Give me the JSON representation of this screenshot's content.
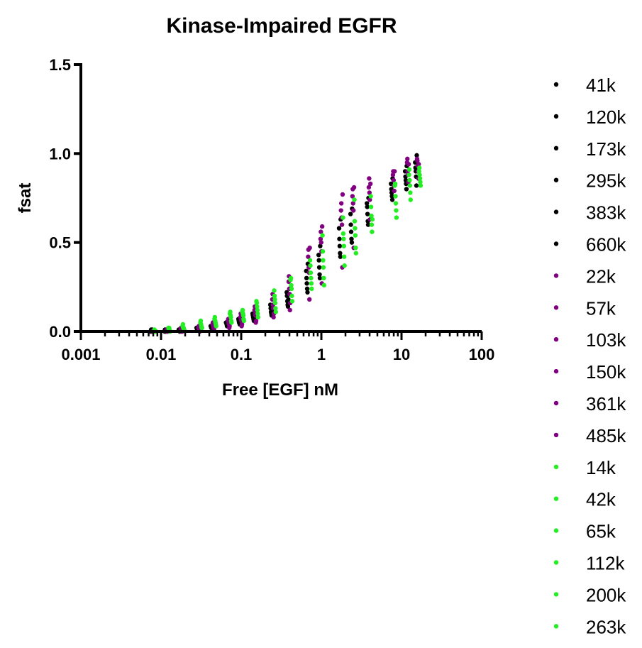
{
  "chart_data": {
    "type": "scatter",
    "title": "Kinase-Impaired EGFR",
    "xlabel": "Free [EGF] nM",
    "ylabel": "fsat",
    "xscale": "log",
    "xlim": [
      0.001,
      100
    ],
    "ylim": [
      0,
      1.5
    ],
    "x_ticks": [
      0.001,
      0.01,
      0.1,
      1,
      10,
      100
    ],
    "x_tick_labels": [
      "0.001",
      "0.01",
      "0.1",
      "1",
      "10",
      "100"
    ],
    "y_ticks": [
      0,
      0.5,
      1.0,
      1.5
    ],
    "y_tick_labels": [
      "0.0",
      "0.5",
      "1.0",
      "1.5"
    ],
    "legend_position": "right",
    "x_levels": [
      0.008,
      0.012,
      0.018,
      0.03,
      0.045,
      0.07,
      0.1,
      0.15,
      0.25,
      0.4,
      0.7,
      1.0,
      1.8,
      2.5,
      4.0,
      8.0,
      12.0,
      16.0
    ],
    "series": [
      {
        "name": "41k",
        "color": "#000000",
        "values": [
          0.0,
          0.0,
          0.01,
          0.02,
          0.03,
          0.05,
          0.07,
          0.1,
          0.15,
          0.22,
          0.34,
          0.43,
          0.58,
          0.66,
          0.72,
          0.83,
          0.9,
          0.95
        ]
      },
      {
        "name": "120k",
        "color": "#000000",
        "values": [
          0.0,
          0.01,
          0.01,
          0.02,
          0.03,
          0.05,
          0.06,
          0.09,
          0.13,
          0.2,
          0.3,
          0.4,
          0.52,
          0.6,
          0.7,
          0.8,
          0.87,
          0.92
        ]
      },
      {
        "name": "173k",
        "color": "#000000",
        "values": [
          0.01,
          0.0,
          0.01,
          0.01,
          0.02,
          0.04,
          0.05,
          0.08,
          0.11,
          0.17,
          0.27,
          0.36,
          0.48,
          0.56,
          0.66,
          0.78,
          0.85,
          0.9
        ]
      },
      {
        "name": "295k",
        "color": "#000000",
        "values": [
          0.0,
          0.0,
          0.0,
          0.01,
          0.02,
          0.03,
          0.05,
          0.07,
          0.1,
          0.15,
          0.24,
          0.32,
          0.44,
          0.52,
          0.62,
          0.76,
          0.83,
          0.87
        ]
      },
      {
        "name": "383k",
        "color": "#000000",
        "values": [
          0.0,
          0.0,
          0.0,
          0.01,
          0.02,
          0.03,
          0.04,
          0.06,
          0.09,
          0.14,
          0.22,
          0.3,
          0.42,
          0.5,
          0.6,
          0.74,
          0.8,
          0.82
        ]
      },
      {
        "name": "660k",
        "color": "#000000",
        "values": [
          0.01,
          0.01,
          0.01,
          0.02,
          0.03,
          0.04,
          0.06,
          0.08,
          0.12,
          0.18,
          0.38,
          0.48,
          0.63,
          0.69,
          0.75,
          0.86,
          0.93,
          0.99
        ]
      },
      {
        "name": "22k",
        "color": "#800080",
        "values": [
          0.0,
          0.01,
          0.01,
          0.02,
          0.04,
          0.06,
          0.08,
          0.12,
          0.18,
          0.28,
          0.42,
          0.52,
          0.68,
          0.76,
          0.81,
          0.88,
          0.95,
          0.97
        ]
      },
      {
        "name": "57k",
        "color": "#800080",
        "values": [
          0.0,
          0.0,
          0.02,
          0.03,
          0.05,
          0.07,
          0.1,
          0.14,
          0.21,
          0.31,
          0.46,
          0.56,
          0.72,
          0.8,
          0.86,
          0.9,
          0.97,
          0.96
        ]
      },
      {
        "name": "103k",
        "color": "#800080",
        "values": [
          0.0,
          0.0,
          0.01,
          0.01,
          0.03,
          0.05,
          0.07,
          0.1,
          0.15,
          0.24,
          0.36,
          0.5,
          0.64,
          0.72,
          0.78,
          0.85,
          0.9,
          0.93
        ]
      },
      {
        "name": "150k",
        "color": "#800080",
        "values": [
          0.0,
          0.01,
          0.0,
          0.01,
          0.02,
          0.04,
          0.06,
          0.09,
          0.13,
          0.21,
          0.33,
          0.45,
          0.6,
          0.68,
          0.74,
          0.82,
          0.88,
          0.9
        ]
      },
      {
        "name": "361k",
        "color": "#800080",
        "values": [
          0.0,
          0.0,
          0.0,
          0.0,
          0.01,
          0.02,
          0.03,
          0.05,
          0.08,
          0.12,
          0.18,
          0.27,
          0.36,
          0.47,
          0.63,
          0.79,
          0.84,
          0.86
        ]
      },
      {
        "name": "485k",
        "color": "#800080",
        "values": [
          0.0,
          0.0,
          0.0,
          0.01,
          0.02,
          0.03,
          0.04,
          0.06,
          0.1,
          0.16,
          0.47,
          0.59,
          0.77,
          0.81,
          0.83,
          0.9,
          0.94,
          0.94
        ]
      },
      {
        "name": "14k",
        "color": "#22ee22",
        "values": [
          0.01,
          0.02,
          0.03,
          0.05,
          0.07,
          0.1,
          0.11,
          0.17,
          0.23,
          0.29,
          0.4,
          0.54,
          0.64,
          0.74,
          0.76,
          0.82,
          0.88,
          0.9
        ]
      },
      {
        "name": "42k",
        "color": "#22ee22",
        "values": [
          0.0,
          0.01,
          0.04,
          0.06,
          0.08,
          0.11,
          0.12,
          0.16,
          0.2,
          0.3,
          0.37,
          0.45,
          0.55,
          0.62,
          0.7,
          0.83,
          0.91,
          0.92
        ]
      },
      {
        "name": "65k",
        "color": "#22ee22",
        "values": [
          0.0,
          0.02,
          0.02,
          0.04,
          0.06,
          0.09,
          0.1,
          0.14,
          0.18,
          0.26,
          0.33,
          0.4,
          0.52,
          0.58,
          0.65,
          0.76,
          0.85,
          0.88
        ]
      },
      {
        "name": "112k",
        "color": "#22ee22",
        "values": [
          0.0,
          0.01,
          0.02,
          0.03,
          0.05,
          0.08,
          0.09,
          0.12,
          0.16,
          0.24,
          0.3,
          0.36,
          0.48,
          0.54,
          0.6,
          0.72,
          0.82,
          0.86
        ]
      },
      {
        "name": "200k",
        "color": "#22ee22",
        "values": [
          0.0,
          0.0,
          0.01,
          0.02,
          0.04,
          0.06,
          0.07,
          0.1,
          0.13,
          0.2,
          0.27,
          0.3,
          0.42,
          0.47,
          0.56,
          0.68,
          0.78,
          0.84
        ]
      },
      {
        "name": "263k",
        "color": "#22ee22",
        "values": [
          0.0,
          0.0,
          0.01,
          0.02,
          0.03,
          0.05,
          0.06,
          0.08,
          0.11,
          0.17,
          0.24,
          0.26,
          0.37,
          0.44,
          0.63,
          0.64,
          0.74,
          0.82
        ]
      }
    ]
  }
}
